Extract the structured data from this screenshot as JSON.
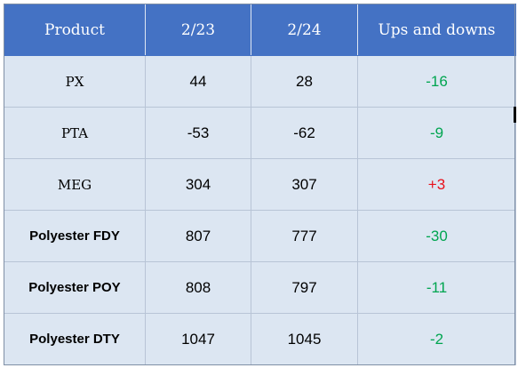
{
  "table": {
    "headers": [
      "Product",
      "2/23",
      "2/24",
      "Ups and downs"
    ],
    "rows": [
      {
        "product": "PX",
        "d1": "44",
        "d2": "28",
        "change": "-16",
        "direction": "down"
      },
      {
        "product": "PTA",
        "d1": "-53",
        "d2": "-62",
        "change": "-9",
        "direction": "down"
      },
      {
        "product": "MEG",
        "d1": "304",
        "d2": "307",
        "change": "+3",
        "direction": "up"
      },
      {
        "product": "Polyester FDY",
        "d1": "807",
        "d2": "777",
        "change": "-30",
        "direction": "down"
      },
      {
        "product": "Polyester POY",
        "d1": "808",
        "d2": "797",
        "change": "-11",
        "direction": "down"
      },
      {
        "product": "Polyester DTY",
        "d1": "1047",
        "d2": "1045",
        "change": "-2",
        "direction": "down"
      }
    ]
  },
  "colors": {
    "header_bg": "#4472c4",
    "cell_bg": "#dce6f2",
    "down": "#00a550",
    "up": "#e8101a"
  }
}
